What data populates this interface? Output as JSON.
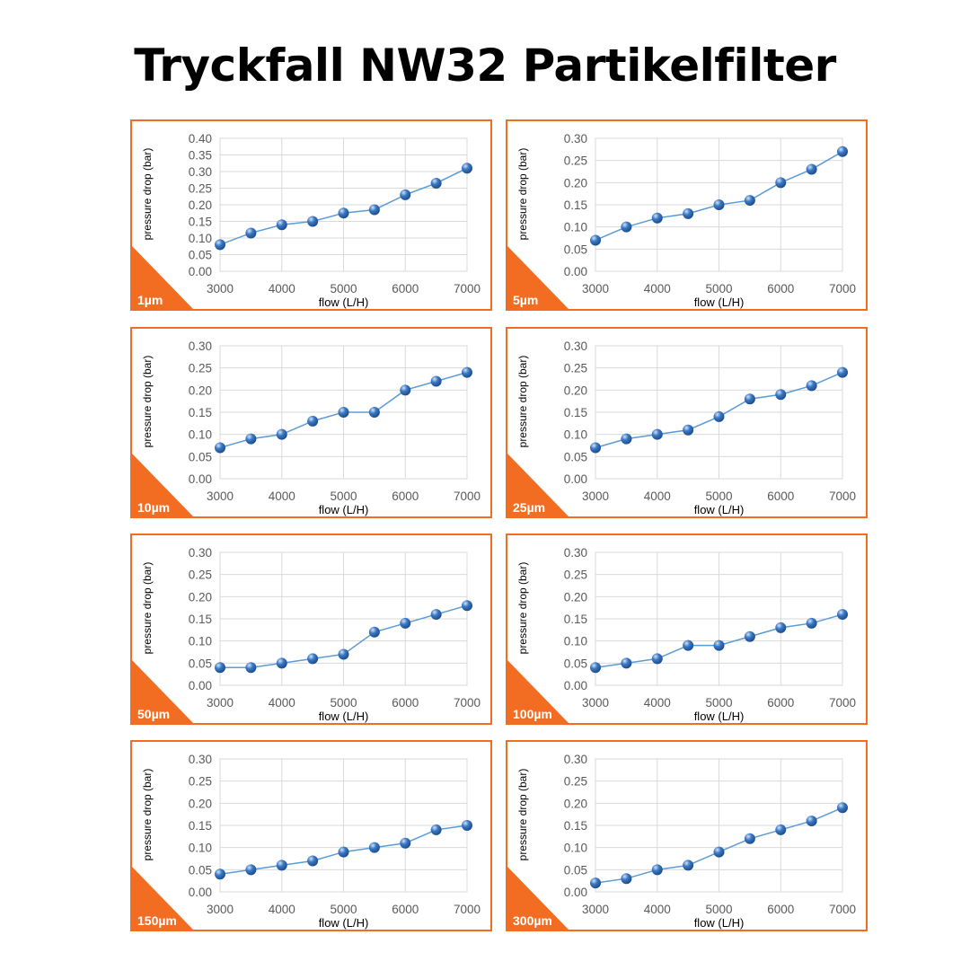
{
  "title": "Tryckfall NW32 Partikelfilter",
  "accent_color": "#f26d21",
  "point_color": "#3b78c4",
  "chart_data": [
    {
      "type": "line",
      "label": "1µm",
      "xlabel": "flow (L/H)",
      "ylabel": "pressure drop (bar)",
      "x": [
        3000,
        3500,
        4000,
        4500,
        5000,
        5500,
        6000,
        6500,
        7000
      ],
      "values": [
        0.08,
        0.115,
        0.14,
        0.15,
        0.175,
        0.185,
        0.23,
        0.265,
        0.31
      ],
      "xlim": [
        3000,
        7000
      ],
      "ylim": [
        0,
        0.4
      ],
      "xticks": [
        "3000",
        "4000",
        "5000",
        "6000",
        "7000"
      ],
      "yticks": [
        "0.00",
        "0.05",
        "0.10",
        "0.15",
        "0.20",
        "0.25",
        "0.30",
        "0.35",
        "0.40"
      ],
      "grid": true
    },
    {
      "type": "line",
      "label": "5µm",
      "xlabel": "flow (L/H)",
      "ylabel": "pressure drop (bar)",
      "x": [
        3000,
        3500,
        4000,
        4500,
        5000,
        5500,
        6000,
        6500,
        7000
      ],
      "values": [
        0.07,
        0.1,
        0.12,
        0.13,
        0.15,
        0.16,
        0.2,
        0.23,
        0.27
      ],
      "xlim": [
        3000,
        7000
      ],
      "ylim": [
        0,
        0.3
      ],
      "xticks": [
        "3000",
        "4000",
        "5000",
        "6000",
        "7000"
      ],
      "yticks": [
        "0.00",
        "0.05",
        "0.10",
        "0.15",
        "0.20",
        "0.25",
        "0.30"
      ],
      "grid": true
    },
    {
      "type": "line",
      "label": "10µm",
      "xlabel": "flow (L/H)",
      "ylabel": "pressure drop (bar)",
      "x": [
        3000,
        3500,
        4000,
        4500,
        5000,
        5500,
        6000,
        6500,
        7000
      ],
      "values": [
        0.07,
        0.09,
        0.1,
        0.13,
        0.15,
        0.15,
        0.2,
        0.22,
        0.24
      ],
      "xlim": [
        3000,
        7000
      ],
      "ylim": [
        0,
        0.3
      ],
      "xticks": [
        "3000",
        "4000",
        "5000",
        "6000",
        "7000"
      ],
      "yticks": [
        "0.00",
        "0.05",
        "0.10",
        "0.15",
        "0.20",
        "0.25",
        "0.30"
      ],
      "grid": true
    },
    {
      "type": "line",
      "label": "25µm",
      "xlabel": "flow (L/H)",
      "ylabel": "pressure drop (bar)",
      "x": [
        3000,
        3500,
        4000,
        4500,
        5000,
        5500,
        6000,
        6500,
        7000
      ],
      "values": [
        0.07,
        0.09,
        0.1,
        0.11,
        0.14,
        0.18,
        0.19,
        0.21,
        0.24
      ],
      "xlim": [
        3000,
        7000
      ],
      "ylim": [
        0,
        0.3
      ],
      "xticks": [
        "3000",
        "4000",
        "5000",
        "6000",
        "7000"
      ],
      "yticks": [
        "0.00",
        "0.05",
        "0.10",
        "0.15",
        "0.20",
        "0.25",
        "0.30"
      ],
      "grid": true
    },
    {
      "type": "line",
      "label": "50µm",
      "xlabel": "flow (L/H)",
      "ylabel": "pressure drop (bar)",
      "x": [
        3000,
        3500,
        4000,
        4500,
        5000,
        5500,
        6000,
        6500,
        7000
      ],
      "values": [
        0.04,
        0.04,
        0.05,
        0.06,
        0.07,
        0.12,
        0.14,
        0.16,
        0.18
      ],
      "xlim": [
        3000,
        7000
      ],
      "ylim": [
        0,
        0.3
      ],
      "xticks": [
        "3000",
        "4000",
        "5000",
        "6000",
        "7000"
      ],
      "yticks": [
        "0.00",
        "0.05",
        "0.10",
        "0.15",
        "0.20",
        "0.25",
        "0.30"
      ],
      "grid": true
    },
    {
      "type": "line",
      "label": "100µm",
      "xlabel": "flow (L/H)",
      "ylabel": "pressure drop (bar)",
      "x": [
        3000,
        3500,
        4000,
        4500,
        5000,
        5500,
        6000,
        6500,
        7000
      ],
      "values": [
        0.04,
        0.05,
        0.06,
        0.09,
        0.09,
        0.11,
        0.13,
        0.14,
        0.16
      ],
      "xlim": [
        3000,
        7000
      ],
      "ylim": [
        0,
        0.3
      ],
      "xticks": [
        "3000",
        "4000",
        "5000",
        "6000",
        "7000"
      ],
      "yticks": [
        "0.00",
        "0.05",
        "0.10",
        "0.15",
        "0.20",
        "0.25",
        "0.30"
      ],
      "grid": true
    },
    {
      "type": "line",
      "label": "150µm",
      "xlabel": "flow (L/H)",
      "ylabel": "pressure drop (bar)",
      "x": [
        3000,
        3500,
        4000,
        4500,
        5000,
        5500,
        6000,
        6500,
        7000
      ],
      "values": [
        0.04,
        0.05,
        0.06,
        0.07,
        0.09,
        0.1,
        0.11,
        0.14,
        0.15
      ],
      "xlim": [
        3000,
        7000
      ],
      "ylim": [
        0,
        0.3
      ],
      "xticks": [
        "3000",
        "4000",
        "5000",
        "6000",
        "7000"
      ],
      "yticks": [
        "0.00",
        "0.05",
        "0.10",
        "0.15",
        "0.20",
        "0.25",
        "0.30"
      ],
      "grid": true
    },
    {
      "type": "line",
      "label": "300µm",
      "xlabel": "flow (L/H)",
      "ylabel": "pressure drop (bar)",
      "x": [
        3000,
        3500,
        4000,
        4500,
        5000,
        5500,
        6000,
        6500,
        7000
      ],
      "values": [
        0.02,
        0.03,
        0.05,
        0.06,
        0.09,
        0.12,
        0.14,
        0.16,
        0.19
      ],
      "xlim": [
        3000,
        7000
      ],
      "ylim": [
        0,
        0.3
      ],
      "xticks": [
        "3000",
        "4000",
        "5000",
        "6000",
        "7000"
      ],
      "yticks": [
        "0.00",
        "0.05",
        "0.10",
        "0.15",
        "0.20",
        "0.25",
        "0.30"
      ],
      "grid": true
    }
  ]
}
